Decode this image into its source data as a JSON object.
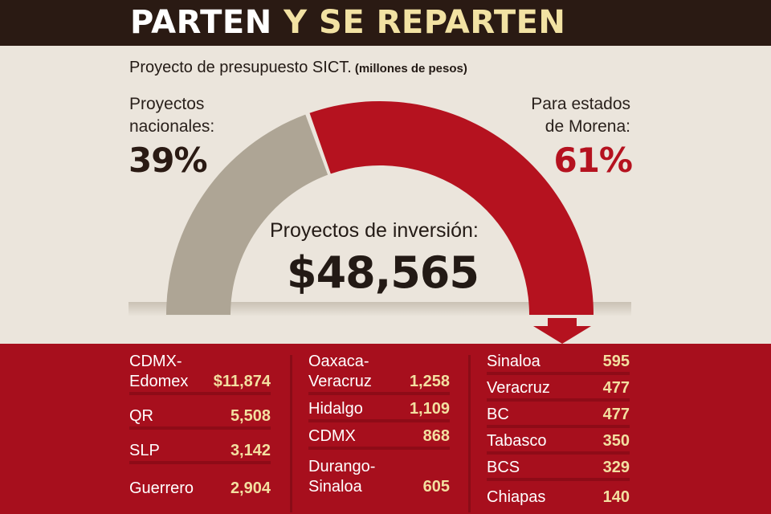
{
  "header": {
    "title_part1": "PARTEN",
    "title_part2": "Y SE REPARTEN"
  },
  "subtitle": {
    "text": "Proyecto de presupuesto SICT.",
    "unit": "(millones de pesos)"
  },
  "chart_data": {
    "type": "pie",
    "variant": "half-donut",
    "title": "Proyecto de presupuesto SICT.",
    "unit": "millones de pesos",
    "center_label": "Proyectos de inversión:",
    "center_value": "$48,565",
    "total": 48565,
    "slices": [
      {
        "name": "Proyectos nacionales:",
        "percent": 39,
        "percent_label": "39%",
        "color": "#aea595"
      },
      {
        "name": "Para estados de Morena:",
        "percent": 61,
        "percent_label": "61%",
        "color": "#b5121f"
      }
    ]
  },
  "labels": {
    "left_name": "Proyectos\nnacionales:",
    "right_name": "Para estados\nde Morena:"
  },
  "breakdown": {
    "col1": [
      {
        "name": "CDMX-\nEdomex",
        "value": "$11,874"
      },
      {
        "name": "QR",
        "value": "5,508"
      },
      {
        "name": "SLP",
        "value": "3,142"
      },
      {
        "name": "Guerrero",
        "value": "2,904"
      }
    ],
    "col2": [
      {
        "name": "Oaxaca-\nVeracruz",
        "value": "1,258"
      },
      {
        "name": "Hidalgo",
        "value": "1,109"
      },
      {
        "name": "CDMX",
        "value": "868"
      },
      {
        "name": "Durango-\nSinaloa",
        "value": "605"
      }
    ],
    "col3": [
      {
        "name": "Sinaloa",
        "value": "595"
      },
      {
        "name": "Veracruz",
        "value": "477"
      },
      {
        "name": "BC",
        "value": "477"
      },
      {
        "name": "Tabasco",
        "value": "350"
      },
      {
        "name": "BCS",
        "value": "329"
      },
      {
        "name": "Chiapas",
        "value": "140"
      }
    ]
  },
  "colors": {
    "header_bg": "#2a1a13",
    "accent_red": "#b5121f",
    "panel_red": "#a70f1d",
    "gray_slice": "#aea595",
    "value_yellow": "#f3dfa0",
    "background": "#ebe5dc"
  }
}
